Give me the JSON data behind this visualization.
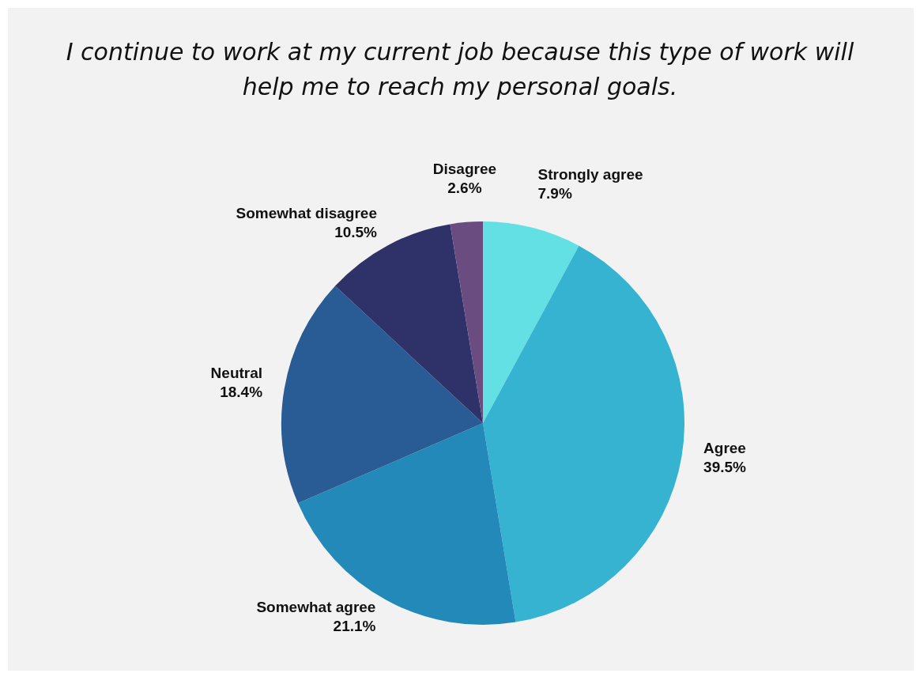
{
  "chart_data": {
    "type": "pie",
    "title": "I continue to work at my current job because this type of work will help me to reach my personal goals.",
    "categories": [
      "Strongly agree",
      "Agree",
      "Somewhat agree",
      "Neutral",
      "Somewhat disagree",
      "Disagree"
    ],
    "values": [
      7.9,
      39.5,
      21.1,
      18.4,
      10.5,
      2.6
    ],
    "value_labels": [
      "7.9%",
      "39.5%",
      "21.1%",
      "18.4%",
      "10.5%",
      "2.6%"
    ],
    "colors": [
      "#62e0e3",
      "#35b3d1",
      "#2389b8",
      "#295c95",
      "#2e3268",
      "#6b4c80"
    ],
    "legend": false
  }
}
